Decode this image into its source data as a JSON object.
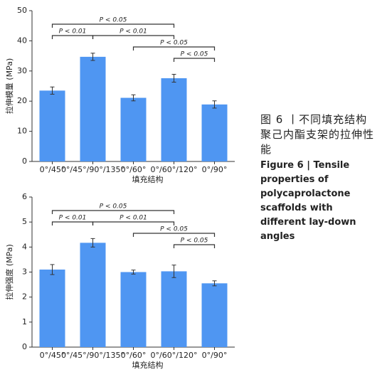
{
  "chart_data": [
    {
      "type": "bar",
      "ylabel": "拉伸模量 (MPa)",
      "xlabel": "填充结构",
      "categories": [
        "0°/45°",
        "0°/45°/90°/135°",
        "0°/60°",
        "0°/60°/120°",
        "0°/90°"
      ],
      "values": [
        23.5,
        34.7,
        21.1,
        27.6,
        18.9
      ],
      "errors": [
        1.2,
        1.2,
        1.0,
        1.3,
        1.2
      ],
      "color": "#4f96f2",
      "ylim": [
        0,
        50
      ],
      "yticks": [
        0,
        10,
        20,
        30,
        40,
        50
      ],
      "annotations": [
        {
          "between": [
            "0°/45°",
            "0°/60°/120°"
          ],
          "text": "P < 0.05"
        },
        {
          "between": [
            "0°/45°",
            "0°/45°/90°/135°"
          ],
          "text": "P < 0.01"
        },
        {
          "between": [
            "0°/45°/90°/135°",
            "0°/60°/120°"
          ],
          "text": "P < 0.01"
        },
        {
          "between": [
            "0°/60°",
            "0°/90°"
          ],
          "text": "P < 0.05"
        },
        {
          "between": [
            "0°/60°/120°",
            "0°/90°"
          ],
          "text": "P < 0.05"
        }
      ]
    },
    {
      "type": "bar",
      "ylabel": "拉伸强度 (MPa)",
      "xlabel": "填充结构",
      "categories": [
        "0°/45°",
        "0°/45°/90°/135°",
        "0°/60°",
        "0°/60°/120°",
        "0°/90°"
      ],
      "values": [
        3.1,
        4.17,
        3.0,
        3.03,
        2.55
      ],
      "errors": [
        0.2,
        0.17,
        0.08,
        0.25,
        0.1
      ],
      "color": "#4f96f2",
      "ylim": [
        0,
        6
      ],
      "yticks": [
        0,
        1,
        2,
        3,
        4,
        5,
        6
      ],
      "annotations": [
        {
          "between": [
            "0°/45°",
            "0°/60°/120°"
          ],
          "text": "P < 0.05"
        },
        {
          "between": [
            "0°/45°",
            "0°/45°/90°/135°"
          ],
          "text": "P < 0.01"
        },
        {
          "between": [
            "0°/45°/90°/135°",
            "0°/60°/120°"
          ],
          "text": "P < 0.01"
        },
        {
          "between": [
            "0°/60°",
            "0°/90°"
          ],
          "text": "P < 0.05"
        },
        {
          "between": [
            "0°/60°/120°",
            "0°/90°"
          ],
          "text": "P < 0.05"
        }
      ]
    }
  ],
  "caption": {
    "zh": "图 6 丨不同填充结构聚己内酯支架的拉伸性能",
    "en": "Figure 6 | Tensile properties of polycaprolactone scaffolds with different lay-down angles"
  }
}
